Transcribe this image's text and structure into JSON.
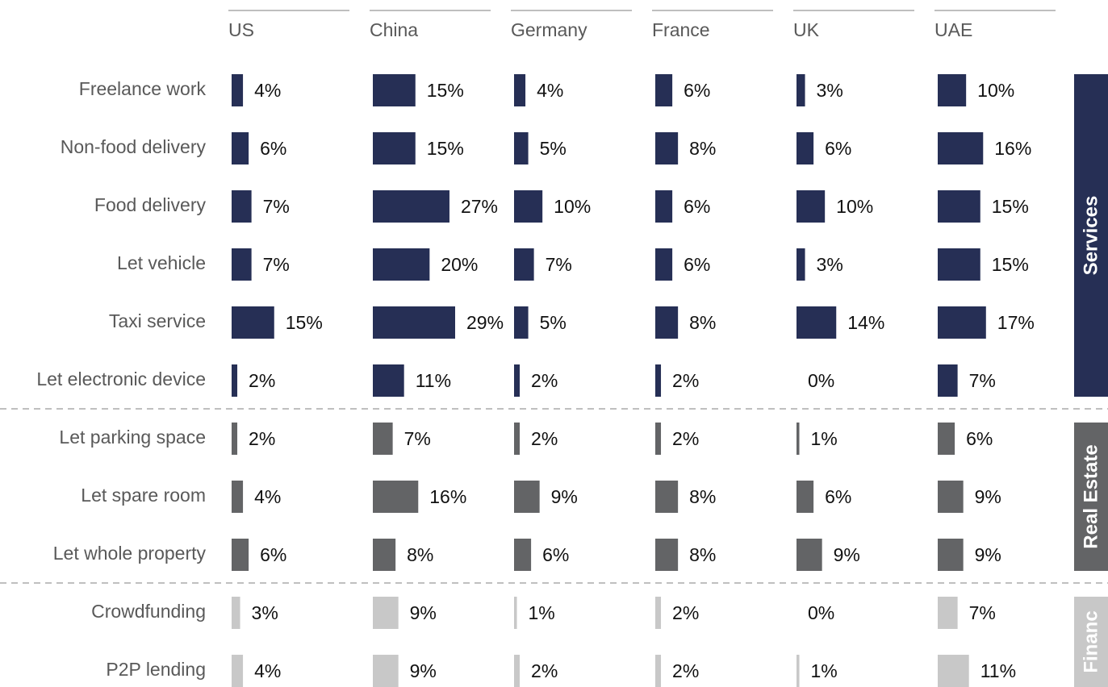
{
  "chart_data": {
    "type": "bar",
    "groups": [
      {
        "name": "Services",
        "color": "#262f55",
        "categories": [
          "Freelance work",
          "Non-food delivery",
          "Food delivery",
          "Let vehicle",
          "Taxi service",
          "Let electronic device"
        ]
      },
      {
        "name": "Real Estate",
        "color": "#636466",
        "categories": [
          "Let parking space",
          "Let spare room",
          "Let whole property"
        ]
      },
      {
        "name": "Financ",
        "color": "#c8c8c8",
        "categories": [
          "Crowdfunding",
          "P2P lending"
        ]
      }
    ],
    "series": [
      {
        "name": "US",
        "values": [
          4,
          6,
          7,
          7,
          15,
          2,
          2,
          4,
          6,
          3,
          4
        ],
        "value_labels": [
          "4%",
          "6%",
          "7%",
          "7%",
          "15%",
          "2%",
          "2%",
          "4%",
          "6%",
          "3%",
          "4%"
        ]
      },
      {
        "name": "China",
        "values": [
          15,
          15,
          27,
          20,
          29,
          11,
          7,
          16,
          8,
          9,
          9
        ],
        "value_labels": [
          "15%",
          "15%",
          "27%",
          "20%",
          "29%",
          "11%",
          "7%",
          "16%",
          "8%",
          "9%",
          "9%"
        ]
      },
      {
        "name": "Germany",
        "values": [
          4,
          5,
          10,
          7,
          5,
          2,
          2,
          9,
          6,
          1,
          2
        ],
        "value_labels": [
          "4%",
          "5%",
          "10%",
          "7%",
          "5%",
          "2%",
          "2%",
          "9%",
          "6%",
          "1%",
          "2%"
        ]
      },
      {
        "name": "France",
        "values": [
          6,
          8,
          6,
          6,
          8,
          2,
          2,
          8,
          8,
          2,
          2
        ],
        "value_labels": [
          "6%",
          "8%",
          "6%",
          "6%",
          "8%",
          "2%",
          "2%",
          "8%",
          "8%",
          "2%",
          "2%"
        ]
      },
      {
        "name": "UK",
        "values": [
          3,
          6,
          10,
          3,
          14,
          0,
          1,
          6,
          9,
          0,
          1
        ],
        "value_labels": [
          "3%",
          "6%",
          "10%",
          "3%",
          "14%",
          "0%",
          "1%",
          "6%",
          "9%",
          "0%",
          "1%"
        ]
      },
      {
        "name": "UAE",
        "values": [
          10,
          16,
          15,
          15,
          17,
          7,
          6,
          9,
          9,
          7,
          11
        ],
        "value_labels": [
          "10%",
          "16%",
          "15%",
          "15%",
          "17%",
          "7%",
          "6%",
          "9%",
          "9%",
          "7%",
          "11%"
        ]
      }
    ]
  }
}
